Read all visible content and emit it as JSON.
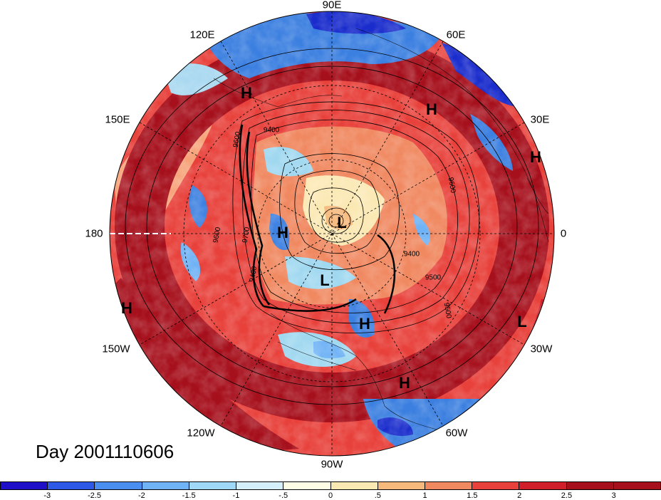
{
  "map": {
    "projection": "north-polar-stereographic",
    "lon_labels": [
      "90E",
      "60E",
      "30E",
      "0",
      "30W",
      "60W",
      "90W",
      "120W",
      "150W",
      "180",
      "150E",
      "120E"
    ],
    "contour_labels": [
      "9400",
      "9600",
      "9700",
      "9400",
      "9500",
      "9600",
      "9600",
      "9400",
      "9500"
    ],
    "highs_lows": [
      "H",
      "H",
      "H",
      "H",
      "L",
      "L",
      "H",
      "L",
      "H",
      "H"
    ],
    "colors": {
      "strong_positive": "#a6101c",
      "positive": "#e8413b",
      "weak_positive": "#f6a37a",
      "neutral": "#fdf3d2",
      "weak_negative": "#a8d8f0",
      "negative": "#3b7fe0",
      "strong_negative": "#1a2ccc"
    }
  },
  "day_label": "Day 2001110606",
  "colorbar": {
    "colors": [
      "#1f10c8",
      "#2e58e6",
      "#4a8ff0",
      "#6fb2f5",
      "#a0d8f8",
      "#d6f0fb",
      "#fdfde6",
      "#fbe9b4",
      "#f6b97c",
      "#f08860",
      "#e8413b",
      "#d01e2a",
      "#a6101c"
    ],
    "labels": [
      "-3",
      "-2.5",
      "-2",
      "-1.5",
      "-1",
      "-.5",
      "0",
      ".5",
      "1",
      "1.5",
      "2",
      "2.5",
      "3"
    ]
  }
}
